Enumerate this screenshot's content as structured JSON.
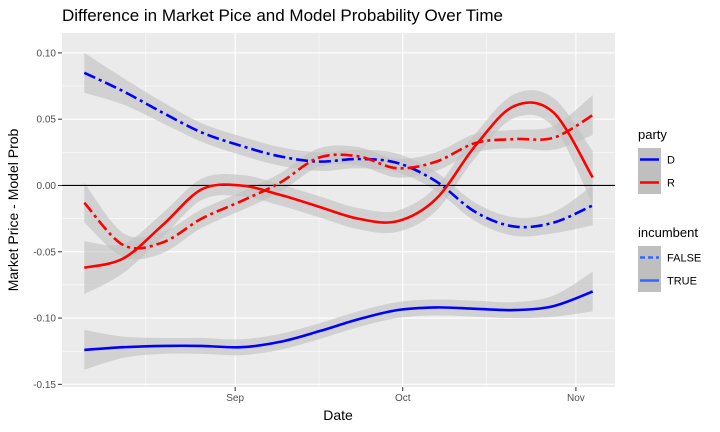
{
  "chart_data": {
    "type": "line",
    "title": "Difference in Market Pice and Model Probability Over Time",
    "xlabel": "Date",
    "ylabel": "Market Price - Model Prob",
    "x_ticks": [
      {
        "label": "Sep",
        "date": "2020-09-01"
      },
      {
        "label": "Oct",
        "date": "2020-10-01"
      },
      {
        "label": "Nov",
        "date": "2020-11-01"
      }
    ],
    "x_minor_dates": [
      "2020-08-16",
      "2020-09-16",
      "2020-10-16"
    ],
    "y_ticks": [
      -0.15,
      -0.1,
      -0.05,
      0.0,
      0.05,
      0.1
    ],
    "y_tick_labels": [
      "-0.15",
      "-0.10",
      "-0.05",
      "0.00",
      "0.05",
      "0.10"
    ],
    "xlim": [
      "2020-08-01",
      "2020-11-08"
    ],
    "ylim": [
      -0.152,
      0.115
    ],
    "reference_line_y": 0,
    "grid": true,
    "legend_position": "right",
    "legends": [
      {
        "title": "party",
        "entries": [
          {
            "label": "D",
            "color": "#0000ff",
            "linetype": "solid"
          },
          {
            "label": "R",
            "color": "#ff0000",
            "linetype": "solid"
          }
        ]
      },
      {
        "title": "incumbent",
        "entries": [
          {
            "label": "FALSE",
            "color": "#3366ff",
            "linetype": "dashed"
          },
          {
            "label": "TRUE",
            "color": "#3366ff",
            "linetype": "solid"
          }
        ]
      }
    ],
    "colors": {
      "D": "#0000ff",
      "R": "#ff0000",
      "ribbon": "#bfbfbf",
      "panel": "#ebebeb",
      "grid": "#ffffff"
    },
    "series": [
      {
        "party": "D",
        "incumbent": "FALSE",
        "x": [
          "2020-08-05",
          "2020-08-12",
          "2020-08-19",
          "2020-08-26",
          "2020-09-02",
          "2020-09-09",
          "2020-09-16",
          "2020-09-23",
          "2020-09-30",
          "2020-10-07",
          "2020-10-14",
          "2020-10-21",
          "2020-10-28",
          "2020-11-04"
        ],
        "y": [
          0.085,
          0.071,
          0.055,
          0.04,
          0.03,
          0.022,
          0.018,
          0.02,
          0.017,
          0.003,
          -0.02,
          -0.031,
          -0.028,
          -0.015
        ],
        "se": [
          0.015,
          0.01,
          0.008,
          0.007,
          0.007,
          0.007,
          0.007,
          0.007,
          0.007,
          0.007,
          0.007,
          0.007,
          0.008,
          0.015
        ]
      },
      {
        "party": "D",
        "incumbent": "TRUE",
        "x": [
          "2020-08-05",
          "2020-08-12",
          "2020-08-19",
          "2020-08-26",
          "2020-09-02",
          "2020-09-09",
          "2020-09-16",
          "2020-09-23",
          "2020-09-30",
          "2020-10-07",
          "2020-10-14",
          "2020-10-21",
          "2020-10-28",
          "2020-11-04"
        ],
        "y": [
          -0.124,
          -0.122,
          -0.121,
          -0.121,
          -0.122,
          -0.118,
          -0.11,
          -0.101,
          -0.094,
          -0.092,
          -0.093,
          -0.094,
          -0.091,
          -0.08
        ],
        "se": [
          0.015,
          0.008,
          0.006,
          0.006,
          0.006,
          0.006,
          0.006,
          0.006,
          0.006,
          0.006,
          0.006,
          0.006,
          0.008,
          0.015
        ]
      },
      {
        "party": "R",
        "incumbent": "FALSE",
        "x": [
          "2020-08-05",
          "2020-08-12",
          "2020-08-19",
          "2020-08-26",
          "2020-09-02",
          "2020-09-09",
          "2020-09-16",
          "2020-09-23",
          "2020-09-30",
          "2020-10-07",
          "2020-10-14",
          "2020-10-21",
          "2020-10-28",
          "2020-11-04"
        ],
        "y": [
          -0.013,
          -0.045,
          -0.043,
          -0.025,
          -0.012,
          0.002,
          0.021,
          0.022,
          0.013,
          0.018,
          0.032,
          0.035,
          0.036,
          0.053
        ],
        "se": [
          0.015,
          0.009,
          0.008,
          0.007,
          0.007,
          0.007,
          0.007,
          0.007,
          0.007,
          0.007,
          0.007,
          0.007,
          0.009,
          0.015
        ]
      },
      {
        "party": "R",
        "incumbent": "TRUE",
        "x": [
          "2020-08-05",
          "2020-08-12",
          "2020-08-19",
          "2020-08-26",
          "2020-09-02",
          "2020-09-09",
          "2020-09-16",
          "2020-09-23",
          "2020-09-30",
          "2020-10-07",
          "2020-10-14",
          "2020-10-21",
          "2020-10-28",
          "2020-11-04"
        ],
        "y": [
          -0.062,
          -0.055,
          -0.03,
          -0.003,
          0.0,
          -0.007,
          -0.016,
          -0.025,
          -0.027,
          -0.01,
          0.03,
          0.06,
          0.055,
          0.006
        ],
        "se": [
          0.02,
          0.011,
          0.009,
          0.008,
          0.008,
          0.008,
          0.008,
          0.008,
          0.008,
          0.009,
          0.009,
          0.009,
          0.011,
          0.02
        ]
      }
    ]
  }
}
